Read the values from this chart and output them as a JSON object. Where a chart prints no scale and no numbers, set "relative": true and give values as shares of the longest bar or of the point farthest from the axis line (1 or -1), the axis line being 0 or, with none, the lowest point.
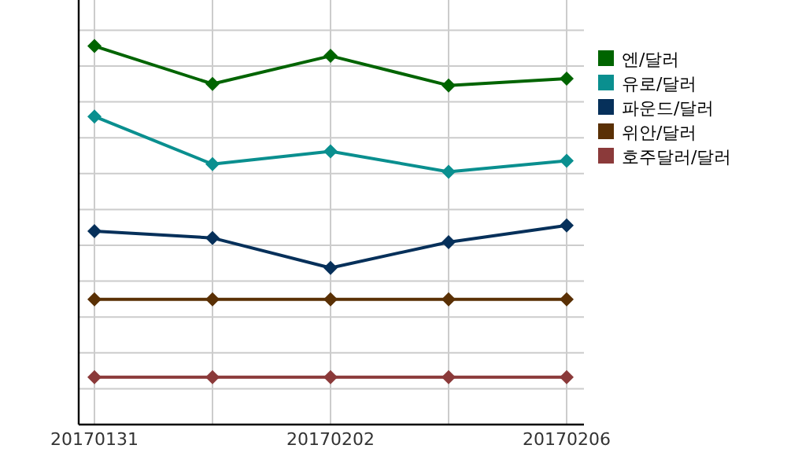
{
  "chart_data": {
    "type": "line",
    "relative": true,
    "marker": "diamond",
    "line_style": "solid",
    "grid": true,
    "legend": "right",
    "categories": [
      "20170131",
      null,
      "20170202",
      null,
      "20170206"
    ],
    "series": [
      {
        "name": "엔/달러",
        "color": "#006400",
        "values": [
          1,
          0.9,
          0.974,
          0.896,
          0.914
        ]
      },
      {
        "name": "유로/달러",
        "color": "#0a8f8f",
        "values": [
          0.814,
          0.688,
          0.722,
          0.668,
          0.697
        ]
      },
      {
        "name": "파운드/달러",
        "color": "#06305a",
        "values": [
          0.511,
          0.493,
          0.414,
          0.482,
          0.526
        ]
      },
      {
        "name": "위안/달러",
        "color": "#5a3005",
        "values": [
          0.331,
          0.331,
          0.331,
          0.331,
          0.331
        ]
      },
      {
        "name": "호주달러/달러",
        "color": "#8b3a3a",
        "values": [
          0.125,
          0.125,
          0.125,
          0.125,
          0.125
        ]
      }
    ]
  }
}
